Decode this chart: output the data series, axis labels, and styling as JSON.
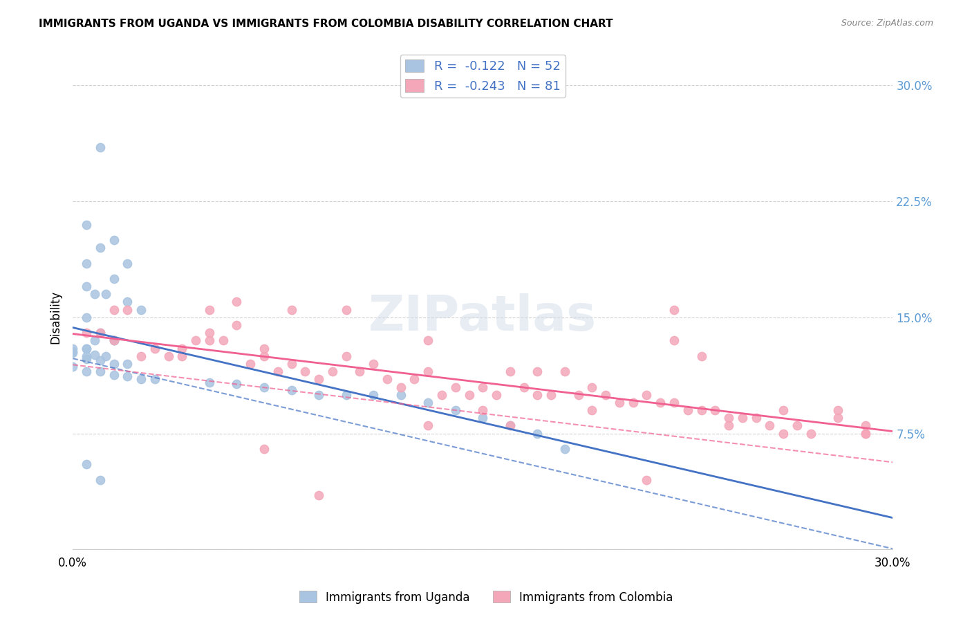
{
  "title": "IMMIGRANTS FROM UGANDA VS IMMIGRANTS FROM COLOMBIA DISABILITY CORRELATION CHART",
  "source": "Source: ZipAtlas.com",
  "ylabel": "Disability",
  "xlabel": "",
  "xmin": 0.0,
  "xmax": 0.3,
  "ymin": 0.0,
  "ymax": 0.3,
  "yticks": [
    0.0,
    0.075,
    0.15,
    0.225,
    0.3
  ],
  "ytick_labels": [
    "",
    "7.5%",
    "15.0%",
    "22.5%",
    "30.0%"
  ],
  "xtick_labels": [
    "0.0%",
    "30.0%"
  ],
  "legend_R_uganda": "-0.122",
  "legend_N_uganda": "52",
  "legend_R_colombia": "-0.243",
  "legend_N_colombia": "81",
  "uganda_color": "#a8c4e0",
  "colombia_color": "#f4a7b9",
  "uganda_line_color": "#4472c4",
  "colombia_line_color": "#f06090",
  "watermark": "ZIPatlas",
  "uganda_scatter_x": [
    0.01,
    0.005,
    0.015,
    0.01,
    0.005,
    0.02,
    0.015,
    0.005,
    0.008,
    0.012,
    0.02,
    0.025,
    0.005,
    0.01,
    0.008,
    0.015,
    0.015,
    0.0,
    0.005,
    0.005,
    0.0,
    0.0,
    0.008,
    0.012,
    0.005,
    0.005,
    0.01,
    0.015,
    0.02,
    0.0,
    0.005,
    0.01,
    0.015,
    0.02,
    0.025,
    0.03,
    0.05,
    0.06,
    0.07,
    0.08,
    0.09,
    0.1,
    0.11,
    0.12,
    0.13,
    0.14,
    0.15,
    0.16,
    0.17,
    0.18,
    0.005,
    0.01
  ],
  "uganda_scatter_y": [
    0.26,
    0.21,
    0.2,
    0.195,
    0.185,
    0.185,
    0.175,
    0.17,
    0.165,
    0.165,
    0.16,
    0.155,
    0.15,
    0.14,
    0.135,
    0.135,
    0.135,
    0.13,
    0.13,
    0.13,
    0.128,
    0.127,
    0.126,
    0.125,
    0.125,
    0.123,
    0.122,
    0.12,
    0.12,
    0.118,
    0.115,
    0.115,
    0.113,
    0.112,
    0.11,
    0.11,
    0.108,
    0.107,
    0.105,
    0.103,
    0.1,
    0.1,
    0.1,
    0.1,
    0.095,
    0.09,
    0.085,
    0.08,
    0.075,
    0.065,
    0.055,
    0.045
  ],
  "colombia_scatter_x": [
    0.005,
    0.01,
    0.015,
    0.015,
    0.02,
    0.025,
    0.03,
    0.035,
    0.04,
    0.04,
    0.045,
    0.05,
    0.05,
    0.055,
    0.06,
    0.065,
    0.07,
    0.07,
    0.075,
    0.08,
    0.085,
    0.09,
    0.095,
    0.1,
    0.105,
    0.11,
    0.115,
    0.12,
    0.125,
    0.13,
    0.135,
    0.14,
    0.145,
    0.15,
    0.155,
    0.16,
    0.165,
    0.17,
    0.175,
    0.18,
    0.185,
    0.19,
    0.195,
    0.2,
    0.205,
    0.21,
    0.215,
    0.22,
    0.225,
    0.23,
    0.235,
    0.24,
    0.245,
    0.25,
    0.255,
    0.26,
    0.265,
    0.27,
    0.28,
    0.29,
    0.29,
    0.22,
    0.05,
    0.06,
    0.08,
    0.1,
    0.13,
    0.15,
    0.17,
    0.19,
    0.22,
    0.23,
    0.24,
    0.26,
    0.28,
    0.29,
    0.21,
    0.13,
    0.16,
    0.07,
    0.09
  ],
  "colombia_scatter_y": [
    0.14,
    0.14,
    0.155,
    0.135,
    0.155,
    0.125,
    0.13,
    0.125,
    0.125,
    0.13,
    0.135,
    0.14,
    0.135,
    0.135,
    0.145,
    0.12,
    0.125,
    0.13,
    0.115,
    0.12,
    0.115,
    0.11,
    0.115,
    0.125,
    0.115,
    0.12,
    0.11,
    0.105,
    0.11,
    0.115,
    0.1,
    0.105,
    0.1,
    0.105,
    0.1,
    0.115,
    0.105,
    0.1,
    0.1,
    0.115,
    0.1,
    0.105,
    0.1,
    0.095,
    0.095,
    0.1,
    0.095,
    0.095,
    0.09,
    0.09,
    0.09,
    0.085,
    0.085,
    0.085,
    0.08,
    0.075,
    0.08,
    0.075,
    0.09,
    0.08,
    0.075,
    0.155,
    0.155,
    0.16,
    0.155,
    0.155,
    0.135,
    0.09,
    0.115,
    0.09,
    0.135,
    0.125,
    0.08,
    0.09,
    0.085,
    0.075,
    0.045,
    0.08,
    0.08,
    0.065,
    0.035
  ]
}
